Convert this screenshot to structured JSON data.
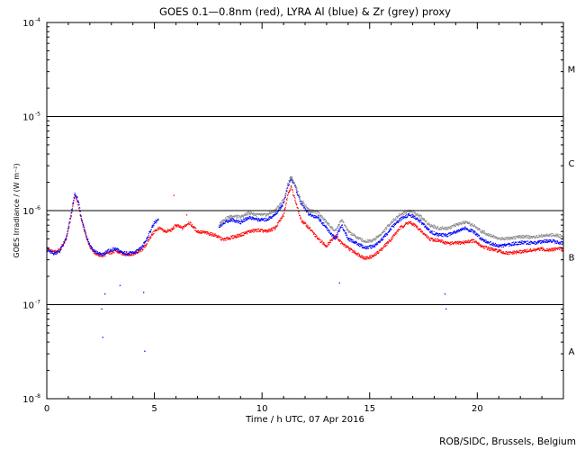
{
  "chart_data": {
    "type": "scatter",
    "title": "GOES 0.1—0.8nm (red), LYRA Al (blue) & Zr (grey) proxy",
    "xlabel": "Time / h UTC, 07 Apr 2016",
    "ylabel": "GOES Irradiance / (W m⁻²)",
    "xlim": [
      0,
      24
    ],
    "ylim": [
      1e-08,
      0.0001
    ],
    "yscale": "log",
    "x_ticks": [
      0,
      5,
      10,
      15,
      20
    ],
    "y_ticks": [
      {
        "value": 1e-08,
        "mantissa": "10",
        "exponent": "-8"
      },
      {
        "value": 1e-07,
        "mantissa": "10",
        "exponent": "-7"
      },
      {
        "value": 1e-06,
        "mantissa": "10",
        "exponent": "-6"
      },
      {
        "value": 1e-05,
        "mantissa": "10",
        "exponent": "-5"
      },
      {
        "value": 0.0001,
        "mantissa": "10",
        "exponent": "-4"
      }
    ],
    "class_lines": [
      1e-07,
      1e-06,
      1e-05
    ],
    "class_labels": [
      {
        "label": "A",
        "value": 3.2e-08
      },
      {
        "label": "B",
        "value": 3.2e-07
      },
      {
        "label": "C",
        "value": 3.2e-06
      },
      {
        "label": "M",
        "value": 3.2e-05
      }
    ],
    "series": [
      {
        "key": "goes",
        "color": "#ff0000",
        "x": [
          0,
          0.3,
          0.6,
          0.9,
          1.1,
          1.3,
          1.45,
          1.6,
          1.8,
          2.0,
          2.2,
          2.4,
          2.6,
          2.8,
          3.0,
          3.2,
          3.5,
          3.8,
          4.1,
          4.4,
          4.6,
          4.8,
          5.0,
          5.2,
          5.5,
          5.8,
          6.0,
          6.3,
          6.6,
          7.0,
          7.4,
          7.8,
          8.2,
          8.6,
          9.0,
          9.4,
          9.8,
          10.2,
          10.6,
          11.0,
          11.2,
          11.35,
          11.5,
          11.8,
          12.2,
          12.6,
          13.0,
          13.4,
          13.7,
          14.0,
          14.4,
          14.8,
          15.2,
          15.6,
          16.0,
          16.4,
          16.8,
          17.1,
          17.4,
          17.8,
          18.2,
          18.6,
          19.0,
          19.4,
          19.8,
          20.2,
          20.6,
          21.0,
          21.4,
          21.8,
          22.2,
          22.6,
          23.0,
          23.4,
          23.8,
          24.0
        ],
        "y": [
          4e-07,
          3.6e-07,
          3.8e-07,
          5e-07,
          8e-07,
          1.45e-06,
          1.2e-06,
          8e-07,
          5.5e-07,
          4.2e-07,
          3.6e-07,
          3.4e-07,
          3.3e-07,
          3.5e-07,
          3.6e-07,
          3.7e-07,
          3.5e-07,
          3.4e-07,
          3.5e-07,
          3.8e-07,
          4.3e-07,
          5.2e-07,
          6e-07,
          6.5e-07,
          6e-07,
          6.2e-07,
          7e-07,
          6.5e-07,
          7.5e-07,
          6e-07,
          5.8e-07,
          5.5e-07,
          4.9e-07,
          5.2e-07,
          5.5e-07,
          6e-07,
          6.2e-07,
          6e-07,
          6.5e-07,
          9e-07,
          1.5e-06,
          1.8e-06,
          1.4e-06,
          8e-07,
          6.5e-07,
          5e-07,
          4.2e-07,
          5.5e-07,
          4.5e-07,
          4e-07,
          3.5e-07,
          3.1e-07,
          3.3e-07,
          4e-07,
          5e-07,
          6.5e-07,
          7.5e-07,
          7e-07,
          6e-07,
          5e-07,
          4.8e-07,
          4.5e-07,
          4.5e-07,
          4.6e-07,
          4.8e-07,
          4.2e-07,
          3.9e-07,
          3.7e-07,
          3.5e-07,
          3.6e-07,
          3.7e-07,
          3.8e-07,
          3.9e-07,
          3.8e-07,
          4e-07,
          3.8e-07
        ]
      },
      {
        "key": "lyra_al",
        "color": "#0000ff",
        "x": [
          0,
          0.3,
          0.6,
          0.9,
          1.1,
          1.3,
          1.45,
          1.6,
          1.8,
          2.0,
          2.2,
          2.4,
          2.6,
          2.8,
          3.0,
          3.2,
          3.5,
          3.8,
          4.1,
          4.4,
          4.6,
          4.8,
          5.0,
          5.2,
          8.0,
          8.2,
          8.6,
          9.0,
          9.4,
          9.8,
          10.2,
          10.6,
          11.0,
          11.2,
          11.35,
          11.5,
          11.8,
          12.2,
          12.6,
          13.0,
          13.4,
          13.7,
          14.0,
          14.4,
          14.8,
          15.2,
          15.6,
          16.0,
          16.4,
          16.8,
          17.1,
          17.4,
          17.8,
          18.2,
          18.6,
          19.0,
          19.4,
          19.8,
          20.2,
          20.6,
          21.0,
          21.4,
          21.8,
          22.2,
          22.6,
          23.0,
          23.4,
          23.8,
          24.0
        ],
        "y": [
          3.8e-07,
          3.5e-07,
          3.7e-07,
          5e-07,
          8.5e-07,
          1.5e-06,
          1.3e-06,
          8.5e-07,
          5.8e-07,
          4.3e-07,
          3.7e-07,
          3.5e-07,
          3.4e-07,
          3.7e-07,
          3.8e-07,
          3.9e-07,
          3.6e-07,
          3.5e-07,
          3.6e-07,
          4e-07,
          4.8e-07,
          6e-07,
          7.5e-07,
          8e-07,
          6.5e-07,
          7.5e-07,
          8e-07,
          7.5e-07,
          8.5e-07,
          8e-07,
          8e-07,
          9e-07,
          1.2e-06,
          1.8e-06,
          2.2e-06,
          1.9e-06,
          1.2e-06,
          9e-07,
          8.5e-07,
          6.5e-07,
          5e-07,
          7e-07,
          5e-07,
          4.5e-07,
          4e-07,
          4.2e-07,
          5e-07,
          6.5e-07,
          8e-07,
          9e-07,
          8.5e-07,
          7.5e-07,
          6e-07,
          5.5e-07,
          5.5e-07,
          6e-07,
          6.5e-07,
          6e-07,
          5e-07,
          4.5e-07,
          4.2e-07,
          4.3e-07,
          4.5e-07,
          4.6e-07,
          4.5e-07,
          4.7e-07,
          4.8e-07,
          4.6e-07,
          4.5e-07
        ]
      },
      {
        "key": "lyra_zr",
        "color": "#8c8c8c",
        "x": [
          8.0,
          8.2,
          8.6,
          9.0,
          9.4,
          9.8,
          10.2,
          10.6,
          11.0,
          11.2,
          11.35,
          11.5,
          11.8,
          12.2,
          12.6,
          13.0,
          13.4,
          13.7,
          14.0,
          14.4,
          14.8,
          15.2,
          15.6,
          16.0,
          16.4,
          16.8,
          17.1,
          17.4,
          17.8,
          18.2,
          18.6,
          19.0,
          19.4,
          19.8,
          20.2,
          20.6,
          21.0,
          21.4,
          21.8,
          22.2,
          22.6,
          23.0,
          23.4,
          23.8,
          24.0
        ],
        "y": [
          7e-07,
          8e-07,
          8.8e-07,
          8.5e-07,
          9.5e-07,
          9e-07,
          9e-07,
          1e-06,
          1.3e-06,
          1.9e-06,
          2.3e-06,
          2e-06,
          1.3e-06,
          1e-06,
          9.5e-07,
          7.5e-07,
          6e-07,
          8e-07,
          6e-07,
          5.2e-07,
          4.7e-07,
          4.9e-07,
          5.8e-07,
          7.5e-07,
          9e-07,
          1e-06,
          9.5e-07,
          8.5e-07,
          7e-07,
          6.5e-07,
          6.5e-07,
          7e-07,
          7.5e-07,
          7e-07,
          6e-07,
          5.5e-07,
          5e-07,
          5.1e-07,
          5.2e-07,
          5.3e-07,
          5.2e-07,
          5.4e-07,
          5.5e-07,
          5.4e-07,
          5.2e-07
        ]
      }
    ],
    "isolated_points": [
      {
        "series": "lyra_al",
        "x": 2.55,
        "y": 9e-08
      },
      {
        "series": "lyra_al",
        "x": 2.6,
        "y": 4.5e-08
      },
      {
        "series": "lyra_al",
        "x": 2.7,
        "y": 1.3e-07
      },
      {
        "series": "lyra_al",
        "x": 3.4,
        "y": 1.6e-07
      },
      {
        "series": "lyra_al",
        "x": 4.5,
        "y": 1.35e-07
      },
      {
        "series": "lyra_al",
        "x": 4.55,
        "y": 3.2e-08
      },
      {
        "series": "lyra_al",
        "x": 13.6,
        "y": 1.7e-07
      },
      {
        "series": "lyra_al",
        "x": 18.5,
        "y": 1.3e-07
      },
      {
        "series": "lyra_al",
        "x": 18.55,
        "y": 9e-08
      },
      {
        "series": "goes",
        "x": 5.9,
        "y": 1.45e-06
      },
      {
        "series": "goes",
        "x": 6.5,
        "y": 9e-07
      }
    ]
  },
  "credit": "ROB/SIDC, Brussels, Belgium"
}
